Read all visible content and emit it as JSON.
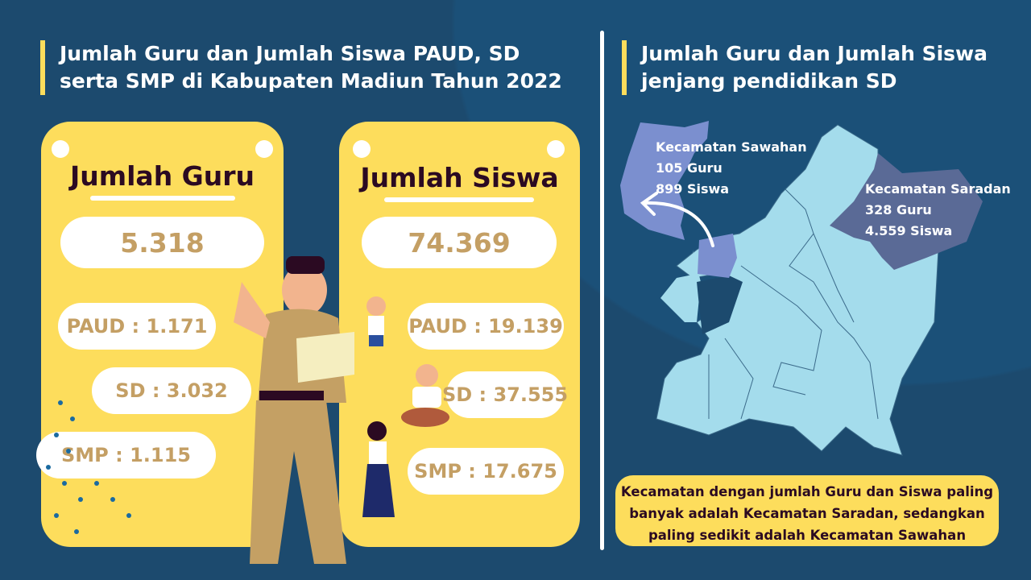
{
  "left_title": "Jumlah Guru dan Jumlah Siswa PAUD, SD serta SMP di Kabupaten Madiun Tahun 2022",
  "right_title": "Jumlah Guru dan Jumlah Siswa jenjang pendidikan SD",
  "guru": {
    "title": "Jumlah Guru",
    "total": "5.318",
    "paud": "PAUD : 1.171",
    "sd": "SD : 3.032",
    "smp": "SMP : 1.115"
  },
  "siswa": {
    "title": "Jumlah Siswa",
    "total": "74.369",
    "paud": "PAUD : 19.139",
    "sd": "SD : 37.555",
    "smp": "SMP : 17.675"
  },
  "map": {
    "sawahan": {
      "name": "Kecamatan Sawahan",
      "guru": "105 Guru",
      "siswa": "899 Siswa",
      "color": "#7b8fcf"
    },
    "saradan": {
      "name": "Kecamatan Saradan",
      "guru": "328 Guru",
      "siswa": "4.559 Siswa",
      "color": "#5a6a96"
    },
    "other_color": "#a4dcec"
  },
  "note": "Kecamatan dengan jumlah Guru dan Siswa paling banyak adalah Kecamatan Saradan, sedangkan paling sedikit adalah Kecamatan Sawahan",
  "colors": {
    "background": "#1c4a6e",
    "card": "#fddd5c",
    "value_text": "#c49f64",
    "heading_text": "#2b0a22"
  }
}
